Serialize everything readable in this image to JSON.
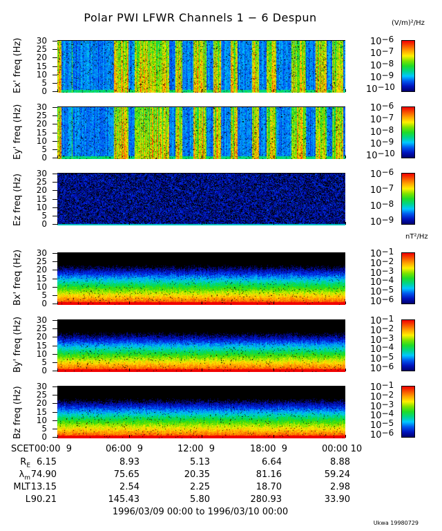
{
  "title": "Polar PWI LFWR Channels 1 − 6 Despun",
  "units": {
    "electric": "(V/m)²/Hz",
    "magnetic": "nT²/Hz"
  },
  "chart_data": {
    "type": "heatmap",
    "x_axis": {
      "label": "SCET",
      "range_hours": [
        0,
        24
      ],
      "ticks": [
        "00:00  9",
        "06:00  9",
        "12:00  9",
        "18:00  9",
        "00:00 10"
      ]
    },
    "panels": [
      {
        "ylabel": "Ex' freq (Hz)",
        "ylim": [
          0,
          30
        ],
        "yticks": [
          "0",
          "5",
          "10",
          "15",
          "20",
          "25",
          "30"
        ],
        "colorbar_log_range": [
          -10,
          -6
        ],
        "colorbar_ticks": [
          "-6",
          "-7",
          "-8",
          "-9",
          "-10"
        ],
        "unit": "electric",
        "style": "bursty",
        "burst_intervals_hours": [
          [
            0,
            0.3
          ],
          [
            1.2,
            1.25
          ],
          [
            4.7,
            5.9
          ],
          [
            6.4,
            9.3
          ],
          [
            9.8,
            10.4
          ],
          [
            11.3,
            12.4
          ],
          [
            13.0,
            13.6
          ],
          [
            14.4,
            15.0
          ],
          [
            16.2,
            16.8
          ],
          [
            17.4,
            18.2
          ],
          [
            19.5,
            20.7
          ],
          [
            21.5,
            22.4
          ],
          [
            22.9,
            23.8
          ]
        ]
      },
      {
        "ylabel": "Ey' freq (Hz)",
        "ylim": [
          0,
          30
        ],
        "yticks": [
          "0",
          "5",
          "10",
          "15",
          "20",
          "25",
          "30"
        ],
        "colorbar_log_range": [
          -10,
          -6
        ],
        "colorbar_ticks": [
          "-6",
          "-7",
          "-8",
          "-9",
          "-10"
        ],
        "unit": "electric",
        "style": "bursty",
        "burst_intervals_hours": [
          [
            0,
            0.3
          ],
          [
            1.2,
            1.25
          ],
          [
            4.7,
            5.9
          ],
          [
            6.4,
            9.3
          ],
          [
            9.8,
            10.4
          ],
          [
            11.3,
            12.4
          ],
          [
            13.0,
            13.6
          ],
          [
            14.4,
            15.0
          ],
          [
            16.2,
            16.8
          ],
          [
            17.4,
            18.2
          ],
          [
            19.5,
            20.7
          ],
          [
            21.5,
            22.4
          ],
          [
            22.9,
            23.8
          ]
        ]
      },
      {
        "ylabel": "Ez freq (Hz)",
        "ylim": [
          0,
          30
        ],
        "yticks": [
          "0",
          "5",
          "10",
          "15",
          "20",
          "25",
          "30"
        ],
        "colorbar_log_range": [
          -9,
          -6
        ],
        "colorbar_ticks": [
          "-6",
          "-7",
          "-8",
          "-9"
        ],
        "unit": "electric",
        "style": "quiet"
      },
      {
        "ylabel": "Bx' freq (Hz)",
        "ylim": [
          0,
          30
        ],
        "yticks": [
          "0",
          "5",
          "10",
          "15",
          "20",
          "25",
          "30"
        ],
        "colorbar_log_range": [
          -6,
          -1
        ],
        "colorbar_ticks": [
          "-1",
          "-2",
          "-3",
          "-4",
          "-5",
          "-6"
        ],
        "unit": "magnetic",
        "style": "magnetic"
      },
      {
        "ylabel": "By' freq (Hz)",
        "ylim": [
          0,
          30
        ],
        "yticks": [
          "0",
          "5",
          "10",
          "15",
          "20",
          "25",
          "30"
        ],
        "colorbar_log_range": [
          -6,
          -1
        ],
        "colorbar_ticks": [
          "-1",
          "-2",
          "-3",
          "-4",
          "-5",
          "-6"
        ],
        "unit": "magnetic",
        "style": "magnetic"
      },
      {
        "ylabel": "Bz freq (Hz)",
        "ylim": [
          0,
          30
        ],
        "yticks": [
          "0",
          "5",
          "10",
          "15",
          "20",
          "25",
          "30"
        ],
        "colorbar_log_range": [
          -6,
          -1
        ],
        "colorbar_ticks": [
          "-1",
          "-2",
          "-3",
          "-4",
          "-5",
          "-6"
        ],
        "unit": "magnetic",
        "style": "magnetic"
      }
    ],
    "colorbar_base": "10"
  },
  "ephemeris": [
    {
      "label": "R",
      "sub": "E",
      "values": [
        "6.15",
        "8.93",
        "5.13",
        "6.64",
        "8.88"
      ]
    },
    {
      "label": "λ",
      "sub": "m",
      "values": [
        "74.90",
        "75.65",
        "20.35",
        "81.16",
        "59.24"
      ]
    },
    {
      "label": "MLT",
      "sub": "",
      "values": [
        "13.15",
        "2.54",
        "2.25",
        "18.70",
        "2.98"
      ]
    },
    {
      "label": "L",
      "sub": "",
      "values": [
        "90.21",
        "145.43",
        "5.80",
        "280.93",
        "33.90"
      ]
    }
  ],
  "date_range": "1996/03/09 00:00 to 1996/03/10 00:00",
  "footer": "Ukwa 19980729"
}
